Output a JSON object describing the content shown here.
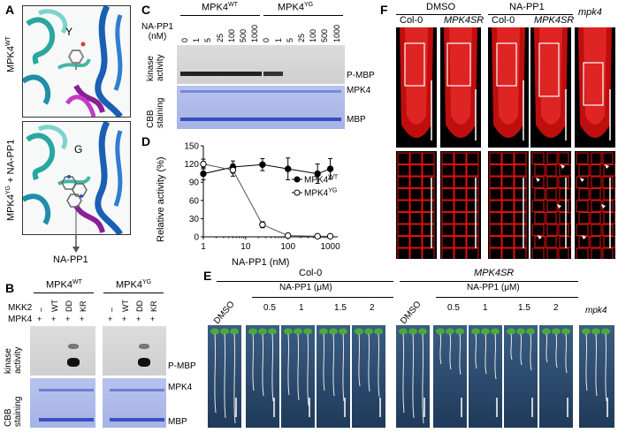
{
  "panel_labels": [
    "A",
    "B",
    "C",
    "D",
    "E",
    "F"
  ],
  "panelA": {
    "top_label": "MPK4WT",
    "top_label_base": "MPK4",
    "top_label_sup": "WT",
    "top_residue": "Y",
    "bottom_label_base": "MPK4",
    "bottom_label_sup": "YG",
    "bottom_label_suffix": " + NA-PP1",
    "bottom_residue": "G",
    "arrow_label": "NA-PP1"
  },
  "panelB": {
    "group1_base": "MPK4",
    "group1_sup": "WT",
    "group2_base": "MPK4",
    "group2_sup": "YG",
    "row1_label": "MKK2",
    "row2_label": "MPK4",
    "mkk2_values": [
      "–",
      "WT",
      "DD",
      "KR"
    ],
    "mpk4_values": [
      "+",
      "+",
      "+",
      "+"
    ],
    "assay_label_1": "kinase",
    "assay_label_2": "activity",
    "stain_label_1": "CBB",
    "stain_label_2": "staining",
    "band_pmbp": "P-MBP",
    "band_mpk4": "MPK4",
    "band_mbp": "MBP"
  },
  "panelC": {
    "group1_base": "MPK4",
    "group1_sup": "WT",
    "group2_base": "MPK4",
    "group2_sup": "YG",
    "conc_label_1": "NA-PP1",
    "conc_label_2": "(nM)",
    "concentrations": [
      "0",
      "1",
      "5",
      "25",
      "100",
      "500",
      "1000",
      "0",
      "1",
      "5",
      "25",
      "100",
      "500",
      "1000"
    ],
    "assay_label_1": "kinase",
    "assay_label_2": "activity",
    "stain_label_1": "CBB",
    "stain_label_2": "staining",
    "band_pmbp": "P-MBP",
    "band_mpk4": "MPK4",
    "band_mbp": "MBP"
  },
  "chart_data": {
    "type": "scatter",
    "xlabel": "NA-PP1 (nM)",
    "ylabel": "Relative activity (%)",
    "xscale": "log",
    "xlim": [
      1,
      1500
    ],
    "ylim": [
      0,
      150
    ],
    "x_ticks": [
      "1",
      "10",
      "100",
      "1000"
    ],
    "y_ticks": [
      "0",
      "30",
      "60",
      "90",
      "120",
      "150"
    ],
    "legend_position": "center-right",
    "series": [
      {
        "name": "MPK4WT",
        "name_base": "MPK4",
        "name_sup": "WT",
        "marker": "filled-circle",
        "x": [
          1,
          5,
          25,
          100,
          500,
          1000
        ],
        "y": [
          104,
          115,
          119,
          112,
          104,
          112
        ],
        "err": [
          10,
          10,
          10,
          18,
          16,
          17
        ]
      },
      {
        "name": "MPK4YG",
        "name_base": "MPK4",
        "name_sup": "YG",
        "marker": "open-circle",
        "x": [
          1,
          5,
          25,
          100,
          500,
          1000
        ],
        "y": [
          120,
          110,
          20,
          2,
          1,
          1
        ],
        "err": [
          8,
          10,
          5,
          1,
          1,
          1
        ]
      }
    ]
  },
  "panelE": {
    "group1": "Col-0",
    "group2": "MPK4SR",
    "group3": "mpk4",
    "dmso_label": "DMSO",
    "treatment_label": "NA-PP1 (μM)",
    "doses": [
      "0.5",
      "1",
      "1.5",
      "2"
    ]
  },
  "panelF": {
    "dmso_label": "DMSO",
    "napp1_label": "NA-PP1",
    "columns": [
      "Col-0",
      "MPK4SR",
      "Col-0",
      "MPK4SR",
      "mpk4"
    ]
  },
  "colors": {
    "root_red": "#e01010",
    "gel_blue": "#a9b6e8",
    "gel_gray": "#d3d3d3",
    "seedling_bg": "#2b4a6e",
    "seedling_green": "#4caa3c"
  }
}
